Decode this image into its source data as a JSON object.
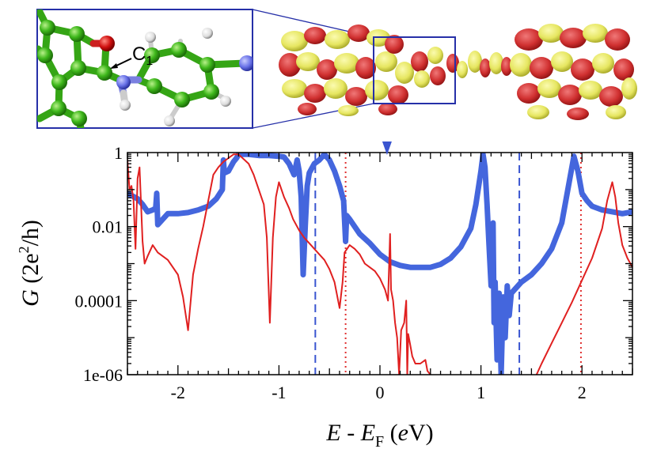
{
  "inset": {
    "atom_label": "C",
    "atom_label_sub": "1"
  },
  "chart_data": {
    "type": "line",
    "xlabel": {
      "main": "E - E",
      "sub": "F",
      "unit_open": " (",
      "unit": "e",
      "unit_close": "V)"
    },
    "ylabel": {
      "main": "G",
      "rest": " (2e",
      "sup": "2",
      "tail": "/h)"
    },
    "xlim": [
      -2.5,
      2.5
    ],
    "ylim_log10": [
      -6,
      0
    ],
    "yscale": "log",
    "x_ticks": [
      {
        "value": -2,
        "label": "-2"
      },
      {
        "value": -1,
        "label": "-1"
      },
      {
        "value": 0,
        "label": "0"
      },
      {
        "value": 1,
        "label": "1"
      },
      {
        "value": 2,
        "label": "2"
      }
    ],
    "y_ticks": [
      {
        "log10": 0,
        "label": "1"
      },
      {
        "log10": -2,
        "label": "0.01"
      },
      {
        "log10": -4,
        "label": "0.0001"
      },
      {
        "log10": -6,
        "label": "1e-06"
      }
    ],
    "marker_x": 0.07,
    "vlines": [
      {
        "x": -0.64,
        "style": "dashed",
        "color": "#3a55d0"
      },
      {
        "x": 1.38,
        "style": "dashed",
        "color": "#3a55d0"
      },
      {
        "x": -0.34,
        "style": "dotted",
        "color": "#e03030"
      },
      {
        "x": 1.99,
        "style": "dotted",
        "color": "#e03030"
      }
    ],
    "series": [
      {
        "color": "#4466dd",
        "width": 7,
        "points": [
          [
            -2.5,
            -1.1
          ],
          [
            -2.4,
            -1.25
          ],
          [
            -2.35,
            -1.4
          ],
          [
            -2.3,
            -1.6
          ],
          [
            -2.25,
            -1.55
          ],
          [
            -2.22,
            -1.5
          ],
          [
            -2.21,
            -1.1
          ],
          [
            -2.2,
            -1.95
          ],
          [
            -2.1,
            -1.65
          ],
          [
            -2.0,
            -1.65
          ],
          [
            -1.9,
            -1.62
          ],
          [
            -1.8,
            -1.55
          ],
          [
            -1.7,
            -1.45
          ],
          [
            -1.62,
            -1.25
          ],
          [
            -1.56,
            -1.0
          ],
          [
            -1.55,
            -0.2
          ],
          [
            -1.54,
            -0.55
          ],
          [
            -1.5,
            -0.5
          ],
          [
            -1.45,
            -0.25
          ],
          [
            -1.42,
            -0.15
          ],
          [
            -1.4,
            -0.05
          ],
          [
            -1.3,
            -0.05
          ],
          [
            -1.2,
            -0.08
          ],
          [
            -1.1,
            -0.08
          ],
          [
            -1.0,
            -0.1
          ],
          [
            -0.95,
            -0.12
          ],
          [
            -0.9,
            -0.3
          ],
          [
            -0.85,
            -0.6
          ],
          [
            -0.82,
            -0.2
          ],
          [
            -0.8,
            -0.5
          ],
          [
            -0.78,
            -1.2
          ],
          [
            -0.76,
            -3.3
          ],
          [
            -0.74,
            -2.0
          ],
          [
            -0.72,
            -0.9
          ],
          [
            -0.7,
            -0.55
          ],
          [
            -0.65,
            -0.3
          ],
          [
            -0.6,
            -0.2
          ],
          [
            -0.55,
            -0.05
          ],
          [
            -0.5,
            -0.2
          ],
          [
            -0.45,
            -0.5
          ],
          [
            -0.4,
            -0.9
          ],
          [
            -0.36,
            -1.3
          ],
          [
            -0.34,
            -2.4
          ],
          [
            -0.33,
            -1.7
          ],
          [
            -0.3,
            -1.8
          ],
          [
            -0.2,
            -2.2
          ],
          [
            -0.1,
            -2.45
          ],
          [
            0.0,
            -2.75
          ],
          [
            0.1,
            -2.95
          ],
          [
            0.2,
            -3.05
          ],
          [
            0.3,
            -3.1
          ],
          [
            0.4,
            -3.1
          ],
          [
            0.5,
            -3.1
          ],
          [
            0.6,
            -3.02
          ],
          [
            0.7,
            -2.85
          ],
          [
            0.8,
            -2.55
          ],
          [
            0.9,
            -2.05
          ],
          [
            0.95,
            -1.4
          ],
          [
            1.0,
            -0.5
          ],
          [
            1.02,
            -0.05
          ],
          [
            1.04,
            -0.4
          ],
          [
            1.06,
            -1.4
          ],
          [
            1.08,
            -2.5
          ],
          [
            1.1,
            -3.6
          ],
          [
            1.12,
            -1.9
          ],
          [
            1.13,
            -4.6
          ],
          [
            1.14,
            -3.5
          ],
          [
            1.16,
            -5.6
          ],
          [
            1.18,
            -3.8
          ],
          [
            1.2,
            -6.0
          ],
          [
            1.22,
            -3.9
          ],
          [
            1.24,
            -5.0
          ],
          [
            1.26,
            -3.6
          ],
          [
            1.28,
            -4.4
          ],
          [
            1.3,
            -3.8
          ],
          [
            1.35,
            -3.65
          ],
          [
            1.4,
            -3.5
          ],
          [
            1.5,
            -3.3
          ],
          [
            1.6,
            -3.0
          ],
          [
            1.7,
            -2.6
          ],
          [
            1.8,
            -1.9
          ],
          [
            1.88,
            -0.7
          ],
          [
            1.92,
            -0.1
          ],
          [
            1.96,
            -0.5
          ],
          [
            2.0,
            -1.1
          ],
          [
            2.05,
            -1.3
          ],
          [
            2.1,
            -1.45
          ],
          [
            2.2,
            -1.55
          ],
          [
            2.3,
            -1.6
          ],
          [
            2.4,
            -1.65
          ],
          [
            2.5,
            -1.6
          ]
        ]
      },
      {
        "color": "#e02020",
        "width": 2,
        "points": [
          [
            -2.5,
            -0.2
          ],
          [
            -2.48,
            -1.0
          ],
          [
            -2.46,
            -0.9
          ],
          [
            -2.44,
            -1.3
          ],
          [
            -2.42,
            -2.6
          ],
          [
            -2.4,
            -0.7
          ],
          [
            -2.38,
            -0.4
          ],
          [
            -2.35,
            -2.4
          ],
          [
            -2.33,
            -3.0
          ],
          [
            -2.3,
            -2.8
          ],
          [
            -2.25,
            -2.5
          ],
          [
            -2.2,
            -2.7
          ],
          [
            -2.1,
            -2.9
          ],
          [
            -2.0,
            -3.3
          ],
          [
            -1.95,
            -3.9
          ],
          [
            -1.9,
            -4.8
          ],
          [
            -1.88,
            -4.2
          ],
          [
            -1.85,
            -3.3
          ],
          [
            -1.8,
            -2.6
          ],
          [
            -1.75,
            -2.0
          ],
          [
            -1.7,
            -1.3
          ],
          [
            -1.65,
            -0.6
          ],
          [
            -1.6,
            -0.4
          ],
          [
            -1.55,
            -0.25
          ],
          [
            -1.5,
            -0.15
          ],
          [
            -1.45,
            -0.05
          ],
          [
            -1.4,
            -0.05
          ],
          [
            -1.3,
            -0.3
          ],
          [
            -1.25,
            -0.6
          ],
          [
            -1.2,
            -1.0
          ],
          [
            -1.15,
            -1.4
          ],
          [
            -1.12,
            -2.3
          ],
          [
            -1.09,
            -4.6
          ],
          [
            -1.06,
            -2.3
          ],
          [
            -1.03,
            -1.2
          ],
          [
            -1.0,
            -0.8
          ],
          [
            -0.95,
            -1.2
          ],
          [
            -0.9,
            -1.5
          ],
          [
            -0.86,
            -1.8
          ],
          [
            -0.8,
            -2.1
          ],
          [
            -0.75,
            -2.3
          ],
          [
            -0.7,
            -2.45
          ],
          [
            -0.65,
            -2.6
          ],
          [
            -0.6,
            -2.75
          ],
          [
            -0.55,
            -2.9
          ],
          [
            -0.5,
            -3.15
          ],
          [
            -0.45,
            -3.5
          ],
          [
            -0.4,
            -4.2
          ],
          [
            -0.37,
            -3.5
          ],
          [
            -0.35,
            -2.7
          ],
          [
            -0.3,
            -2.5
          ],
          [
            -0.25,
            -2.6
          ],
          [
            -0.2,
            -2.75
          ],
          [
            -0.15,
            -3.0
          ],
          [
            -0.1,
            -3.1
          ],
          [
            -0.05,
            -3.2
          ],
          [
            0.0,
            -3.4
          ],
          [
            0.05,
            -3.7
          ],
          [
            0.08,
            -4.0
          ],
          [
            0.1,
            -2.2
          ],
          [
            0.11,
            -3.7
          ],
          [
            0.13,
            -4.0
          ],
          [
            0.15,
            -4.6
          ],
          [
            0.17,
            -5.0
          ],
          [
            0.19,
            -6.0
          ],
          [
            0.21,
            -4.8
          ],
          [
            0.24,
            -4.6
          ],
          [
            0.26,
            -4.0
          ],
          [
            0.27,
            -6.0
          ],
          [
            0.28,
            -4.9
          ],
          [
            0.3,
            -5.2
          ],
          [
            0.32,
            -5.5
          ],
          [
            0.35,
            -5.7
          ],
          [
            0.4,
            -5.7
          ],
          [
            0.45,
            -5.6
          ],
          [
            0.47,
            -5.9
          ],
          [
            0.5,
            -6.0
          ]
        ]
      },
      {
        "color": "#e02020",
        "width": 2,
        "points": [
          [
            1.55,
            -6.0
          ],
          [
            1.6,
            -5.7
          ],
          [
            1.7,
            -5.15
          ],
          [
            1.8,
            -4.6
          ],
          [
            1.9,
            -4.05
          ],
          [
            2.0,
            -3.45
          ],
          [
            2.1,
            -2.85
          ],
          [
            2.2,
            -2.05
          ],
          [
            2.25,
            -1.3
          ],
          [
            2.3,
            -0.8
          ],
          [
            2.33,
            -1.2
          ],
          [
            2.36,
            -1.9
          ],
          [
            2.4,
            -2.5
          ],
          [
            2.45,
            -2.85
          ],
          [
            2.5,
            -3.1
          ]
        ]
      }
    ]
  }
}
